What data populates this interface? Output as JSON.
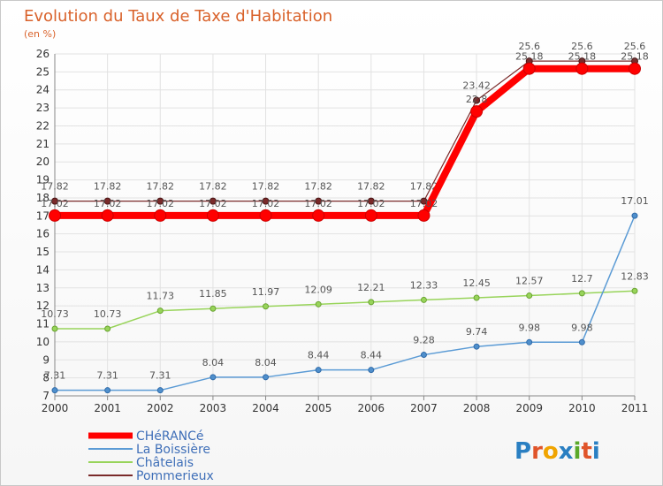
{
  "chart_data": {
    "type": "line",
    "title": "Evolution du Taux de Taxe d'Habitation",
    "unit_label": "(en %)",
    "categories": [
      "2000",
      "2001",
      "2002",
      "2003",
      "2004",
      "2005",
      "2006",
      "2007",
      "2008",
      "2009",
      "2010",
      "2011"
    ],
    "ylim": [
      7,
      26
    ],
    "yticks": [
      7,
      8,
      9,
      10,
      11,
      12,
      13,
      14,
      15,
      16,
      17,
      18,
      19,
      20,
      21,
      22,
      23,
      24,
      25,
      26
    ],
    "series": [
      {
        "name": "Pommerieux",
        "color": "#7a2a2a",
        "values": [
          17.82,
          17.82,
          17.82,
          17.82,
          17.82,
          17.82,
          17.82,
          17.82,
          23.42,
          25.6,
          25.6,
          25.6
        ],
        "labels": [
          "17.82",
          "17.82",
          "17.82",
          "17.82",
          "17.82",
          "17.82",
          "17.82",
          "17.82",
          "23.42",
          "25.6",
          "25.6",
          "25.6"
        ]
      },
      {
        "name": "Châtelais",
        "color": "#98d45a",
        "values": [
          10.73,
          10.73,
          11.73,
          11.85,
          11.97,
          12.09,
          12.21,
          12.33,
          12.45,
          12.57,
          12.7,
          12.83
        ],
        "labels": [
          "10.73",
          "10.73",
          "11.73",
          "11.85",
          "11.97",
          "12.09",
          "12.21",
          "12.33",
          "12.45",
          "12.57",
          "12.7",
          "12.83"
        ]
      },
      {
        "name": "La Boissière",
        "color": "#5b9bd5",
        "values": [
          7.31,
          7.31,
          7.31,
          8.04,
          8.04,
          8.44,
          8.44,
          9.28,
          9.74,
          9.98,
          9.98,
          17.01
        ],
        "labels": [
          "7.31",
          "7.31",
          "7.31",
          "8.04",
          "8.04",
          "8.44",
          "8.44",
          "9.28",
          "9.74",
          "9.98",
          "9.98",
          "17.01"
        ]
      },
      {
        "name": "CHéRANCé",
        "color": "#ff0000",
        "values": [
          17.02,
          17.02,
          17.02,
          17.02,
          17.02,
          17.02,
          17.02,
          17.02,
          22.8,
          25.18,
          25.18,
          25.18
        ],
        "labels": [
          "17.02",
          "17.02",
          "17.02",
          "17.02",
          "17.02",
          "17.02",
          "17.02",
          "17.02",
          "22.8",
          "25.18",
          "25.18",
          "25.18"
        ]
      }
    ],
    "legend_order": [
      "CHéRANCé",
      "La Boissière",
      "Châtelais",
      "Pommerieux"
    ]
  },
  "brand": {
    "name": "Proxiti"
  }
}
